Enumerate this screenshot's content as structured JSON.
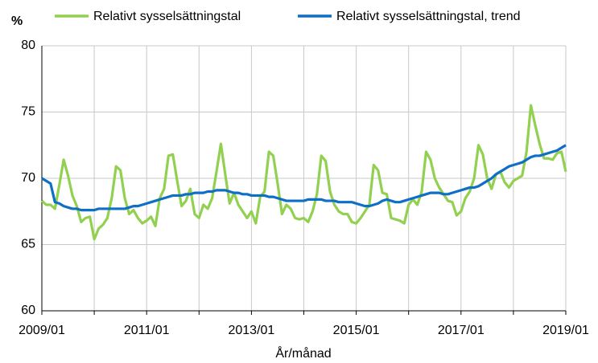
{
  "chart_data": {
    "type": "line",
    "y_unit": "%",
    "x_label": "År/månad",
    "categories": [
      "2009/01",
      null,
      null,
      null,
      null,
      null,
      null,
      null,
      null,
      null,
      null,
      null,
      null,
      null,
      null,
      null,
      null,
      null,
      null,
      null,
      null,
      null,
      null,
      null,
      "2011/01",
      null,
      null,
      null,
      null,
      null,
      null,
      null,
      null,
      null,
      null,
      null,
      null,
      null,
      null,
      null,
      null,
      null,
      null,
      null,
      null,
      null,
      null,
      null,
      "2013/01",
      null,
      null,
      null,
      null,
      null,
      null,
      null,
      null,
      null,
      null,
      null,
      null,
      null,
      null,
      null,
      null,
      null,
      null,
      null,
      null,
      null,
      null,
      null,
      "2015/01",
      null,
      null,
      null,
      null,
      null,
      null,
      null,
      null,
      null,
      null,
      null,
      null,
      null,
      null,
      null,
      null,
      null,
      null,
      null,
      null,
      null,
      null,
      null,
      "2017/01",
      null,
      null,
      null,
      null,
      null,
      null,
      null,
      null,
      null,
      null,
      null,
      null,
      null,
      null,
      null,
      null,
      null,
      null,
      null,
      null,
      null,
      null,
      null,
      "2019/01"
    ],
    "series": [
      {
        "name": "Relativt sysselsättningstal",
        "color": "#92d050",
        "values": [
          68.3,
          68.0,
          68.0,
          67.7,
          69.5,
          71.4,
          70.2,
          68.7,
          67.9,
          66.7,
          67.0,
          67.1,
          65.4,
          66.2,
          66.5,
          67.0,
          68.5,
          70.9,
          70.6,
          68.5,
          67.3,
          67.6,
          67.0,
          66.6,
          66.8,
          67.1,
          66.4,
          68.5,
          69.2,
          71.7,
          71.8,
          69.8,
          67.9,
          68.3,
          69.2,
          67.3,
          67.0,
          68.0,
          67.7,
          68.5,
          70.5,
          72.6,
          70.3,
          68.1,
          68.9,
          68.0,
          67.5,
          67.0,
          67.5,
          66.6,
          68.6,
          69.0,
          72.0,
          71.7,
          69.6,
          67.3,
          68.0,
          67.7,
          67.0,
          66.9,
          67.0,
          66.7,
          67.5,
          68.8,
          71.7,
          71.3,
          69.0,
          68.0,
          67.5,
          67.3,
          67.3,
          66.7,
          66.6,
          67.0,
          67.5,
          68.0,
          71.0,
          70.6,
          68.9,
          68.8,
          67.0,
          66.9,
          66.8,
          66.6,
          68.0,
          68.4,
          68.0,
          69.0,
          72.0,
          71.4,
          70.0,
          69.3,
          68.8,
          68.3,
          68.2,
          67.2,
          67.5,
          68.5,
          69.0,
          70.0,
          72.5,
          71.8,
          70.0,
          69.2,
          70.3,
          70.5,
          69.7,
          69.3,
          69.8,
          70.0,
          70.2,
          72.0,
          75.5,
          74.0,
          72.6,
          71.5,
          71.5,
          71.4,
          71.9,
          72.0,
          70.5
        ]
      },
      {
        "name": "Relativt sysselsättningstal, trend",
        "color": "#0f6fc6",
        "values": [
          70.0,
          69.8,
          69.6,
          68.2,
          68.1,
          67.9,
          67.8,
          67.7,
          67.7,
          67.6,
          67.6,
          67.6,
          67.6,
          67.7,
          67.7,
          67.7,
          67.7,
          67.7,
          67.7,
          67.7,
          67.8,
          67.9,
          67.9,
          68.0,
          68.1,
          68.2,
          68.3,
          68.4,
          68.5,
          68.6,
          68.7,
          68.7,
          68.7,
          68.8,
          68.8,
          68.9,
          68.9,
          68.9,
          69.0,
          69.0,
          69.1,
          69.1,
          69.1,
          69.0,
          68.9,
          68.9,
          68.8,
          68.8,
          68.7,
          68.7,
          68.7,
          68.7,
          68.6,
          68.6,
          68.5,
          68.4,
          68.3,
          68.3,
          68.3,
          68.3,
          68.3,
          68.4,
          68.4,
          68.4,
          68.4,
          68.3,
          68.3,
          68.3,
          68.2,
          68.2,
          68.2,
          68.2,
          68.1,
          68.0,
          67.9,
          67.9,
          68.0,
          68.1,
          68.3,
          68.4,
          68.3,
          68.2,
          68.2,
          68.3,
          68.4,
          68.5,
          68.6,
          68.7,
          68.8,
          68.9,
          68.9,
          68.9,
          68.8,
          68.8,
          68.9,
          69.0,
          69.1,
          69.2,
          69.3,
          69.3,
          69.4,
          69.6,
          69.8,
          70.0,
          70.3,
          70.5,
          70.7,
          70.9,
          71.0,
          71.1,
          71.2,
          71.4,
          71.6,
          71.7,
          71.7,
          71.8,
          71.9,
          72.0,
          72.1,
          72.3,
          72.5
        ]
      }
    ],
    "ylim": [
      60,
      80
    ],
    "yticks": [
      60,
      65,
      70,
      75,
      80
    ],
    "grid": true,
    "legend": "top"
  }
}
